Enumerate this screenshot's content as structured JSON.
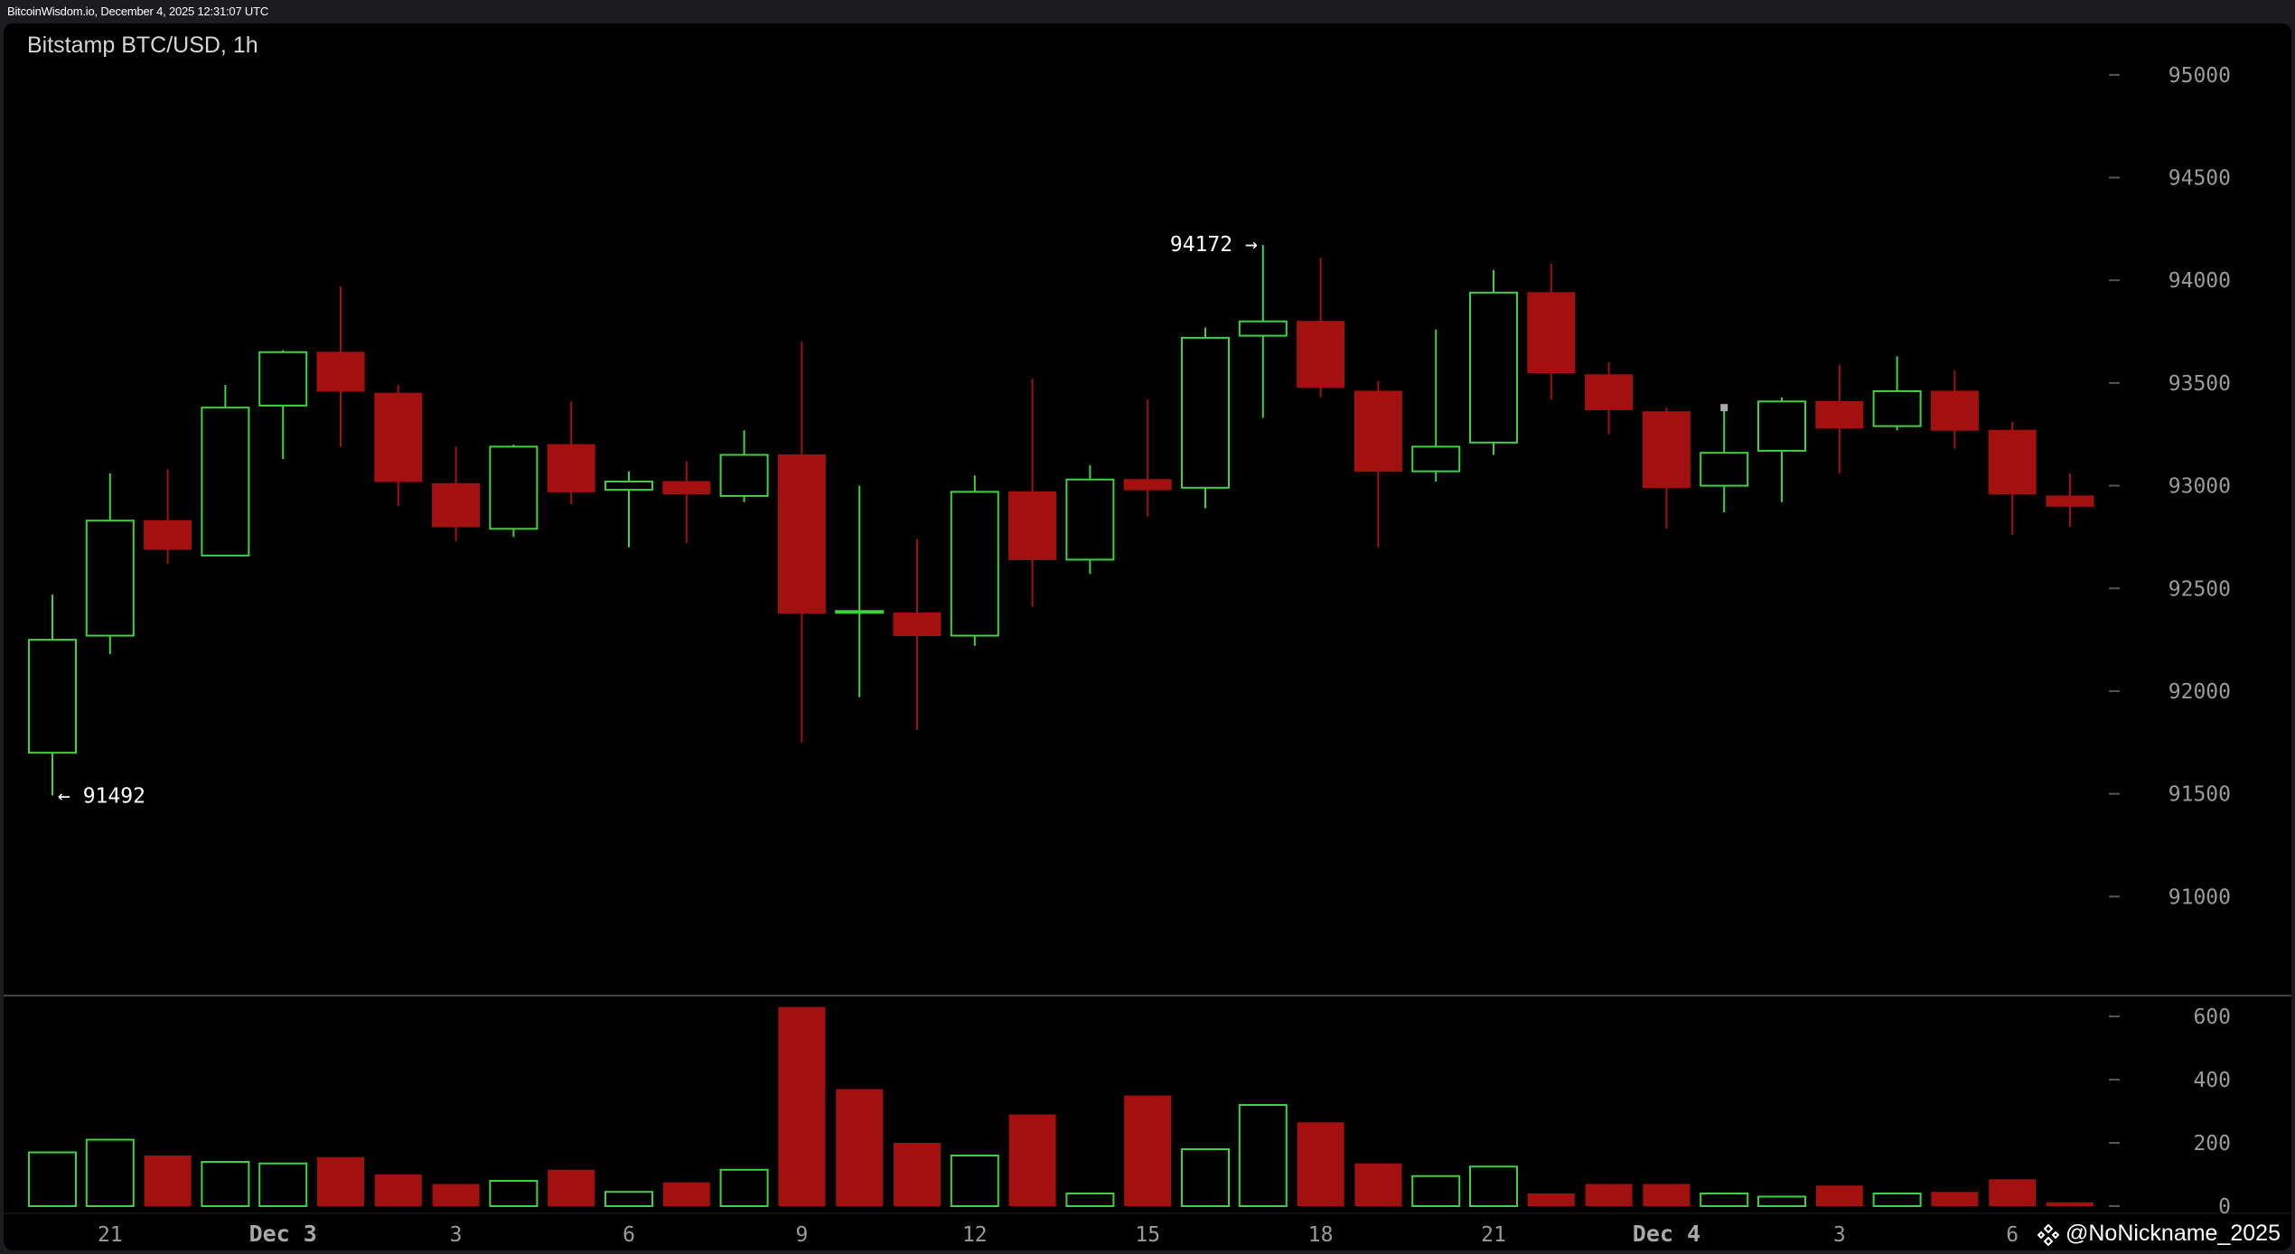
{
  "header": {
    "text": "BitcoinWisdom.io, December 4, 2025 12:31:07 UTC"
  },
  "chart_title": "Bitstamp BTC/USD, 1h",
  "watermark": {
    "text": "@NoNickname_2025",
    "icon": "binance-diamond-icon"
  },
  "colors": {
    "up": "#3fd13f",
    "down": "#a31010",
    "background": "#000000",
    "axis_text": "#9a9a9a",
    "separator": "#444444"
  },
  "chart_data": [
    {
      "type": "candlestick",
      "title": "Bitstamp BTC/USD, 1h",
      "y_ticks": [
        91000,
        91500,
        92000,
        92500,
        93000,
        93500,
        94000,
        94500,
        95000
      ],
      "ylim": [
        90500,
        95250
      ],
      "x_tick_labels": [
        {
          "index": 1,
          "label": "21",
          "major": false
        },
        {
          "index": 4,
          "label": "Dec 3",
          "major": true
        },
        {
          "index": 7,
          "label": "3",
          "major": false
        },
        {
          "index": 10,
          "label": "6",
          "major": false
        },
        {
          "index": 13,
          "label": "9",
          "major": false
        },
        {
          "index": 16,
          "label": "12",
          "major": false
        },
        {
          "index": 19,
          "label": "15",
          "major": false
        },
        {
          "index": 22,
          "label": "18",
          "major": false
        },
        {
          "index": 25,
          "label": "21",
          "major": false
        },
        {
          "index": 28,
          "label": "Dec 4",
          "major": true
        },
        {
          "index": 31,
          "label": "3",
          "major": false
        },
        {
          "index": 34,
          "label": "6",
          "major": false
        }
      ],
      "annotations": [
        {
          "text": "← 91492",
          "candle_index": 0,
          "value": 91492,
          "side": "right"
        },
        {
          "text": "94172 →",
          "candle_index": 21,
          "value": 94172,
          "side": "left"
        }
      ],
      "candles": [
        {
          "o": 91700,
          "h": 92470,
          "l": 91492,
          "c": 92250
        },
        {
          "o": 92270,
          "h": 93060,
          "l": 92180,
          "c": 92830
        },
        {
          "o": 92830,
          "h": 93080,
          "l": 92620,
          "c": 92690
        },
        {
          "o": 92660,
          "h": 93490,
          "l": 92660,
          "c": 93380
        },
        {
          "o": 93390,
          "h": 93660,
          "l": 93130,
          "c": 93650
        },
        {
          "o": 93650,
          "h": 93970,
          "l": 93190,
          "c": 93460
        },
        {
          "o": 93450,
          "h": 93490,
          "l": 92900,
          "c": 93020
        },
        {
          "o": 93010,
          "h": 93190,
          "l": 92730,
          "c": 92800
        },
        {
          "o": 92790,
          "h": 93200,
          "l": 92750,
          "c": 93190
        },
        {
          "o": 93200,
          "h": 93410,
          "l": 92910,
          "c": 92970
        },
        {
          "o": 92980,
          "h": 93070,
          "l": 92700,
          "c": 93020
        },
        {
          "o": 93020,
          "h": 93120,
          "l": 92720,
          "c": 92960
        },
        {
          "o": 92950,
          "h": 93270,
          "l": 92920,
          "c": 93150
        },
        {
          "o": 93150,
          "h": 93700,
          "l": 91750,
          "c": 92380
        },
        {
          "o": 92390,
          "h": 93000,
          "l": 91970,
          "c": 92390
        },
        {
          "o": 92380,
          "h": 92740,
          "l": 91810,
          "c": 92270
        },
        {
          "o": 92270,
          "h": 93050,
          "l": 92220,
          "c": 92970
        },
        {
          "o": 92970,
          "h": 93520,
          "l": 92410,
          "c": 92640
        },
        {
          "o": 92640,
          "h": 93100,
          "l": 92570,
          "c": 93030
        },
        {
          "o": 93030,
          "h": 93420,
          "l": 92850,
          "c": 92980
        },
        {
          "o": 92990,
          "h": 93770,
          "l": 92890,
          "c": 93720
        },
        {
          "o": 93730,
          "h": 94172,
          "l": 93330,
          "c": 93800
        },
        {
          "o": 93800,
          "h": 94110,
          "l": 93430,
          "c": 93480
        },
        {
          "o": 93460,
          "h": 93510,
          "l": 92700,
          "c": 93070
        },
        {
          "o": 93070,
          "h": 93760,
          "l": 93020,
          "c": 93190
        },
        {
          "o": 93210,
          "h": 94050,
          "l": 93150,
          "c": 93940
        },
        {
          "o": 93940,
          "h": 94080,
          "l": 93420,
          "c": 93550
        },
        {
          "o": 93540,
          "h": 93600,
          "l": 93250,
          "c": 93370
        },
        {
          "o": 93360,
          "h": 93380,
          "l": 92790,
          "c": 92990
        },
        {
          "o": 93000,
          "h": 93380,
          "l": 92870,
          "c": 93160
        },
        {
          "o": 93170,
          "h": 93430,
          "l": 92920,
          "c": 93410
        },
        {
          "o": 93410,
          "h": 93590,
          "l": 93060,
          "c": 93280
        },
        {
          "o": 93290,
          "h": 93630,
          "l": 93270,
          "c": 93460
        },
        {
          "o": 93460,
          "h": 93560,
          "l": 93180,
          "c": 93270
        },
        {
          "o": 93270,
          "h": 93310,
          "l": 92760,
          "c": 92960
        },
        {
          "o": 92950,
          "h": 93060,
          "l": 92800,
          "c": 92900
        }
      ]
    },
    {
      "type": "bar",
      "title": "",
      "y_ticks": [
        0,
        200,
        400,
        600
      ],
      "ylim": [
        0,
        640
      ],
      "volumes": [
        170,
        210,
        160,
        140,
        135,
        155,
        100,
        70,
        80,
        115,
        45,
        75,
        115,
        630,
        370,
        200,
        160,
        290,
        40,
        350,
        180,
        320,
        265,
        135,
        95,
        125,
        40,
        70,
        70,
        40,
        30,
        65,
        40,
        45,
        85,
        12
      ],
      "up": [
        true,
        true,
        false,
        true,
        true,
        false,
        false,
        false,
        true,
        false,
        true,
        false,
        true,
        false,
        false,
        false,
        true,
        false,
        true,
        false,
        true,
        true,
        false,
        false,
        true,
        true,
        false,
        false,
        false,
        true,
        true,
        false,
        true,
        false,
        false,
        false
      ]
    }
  ]
}
